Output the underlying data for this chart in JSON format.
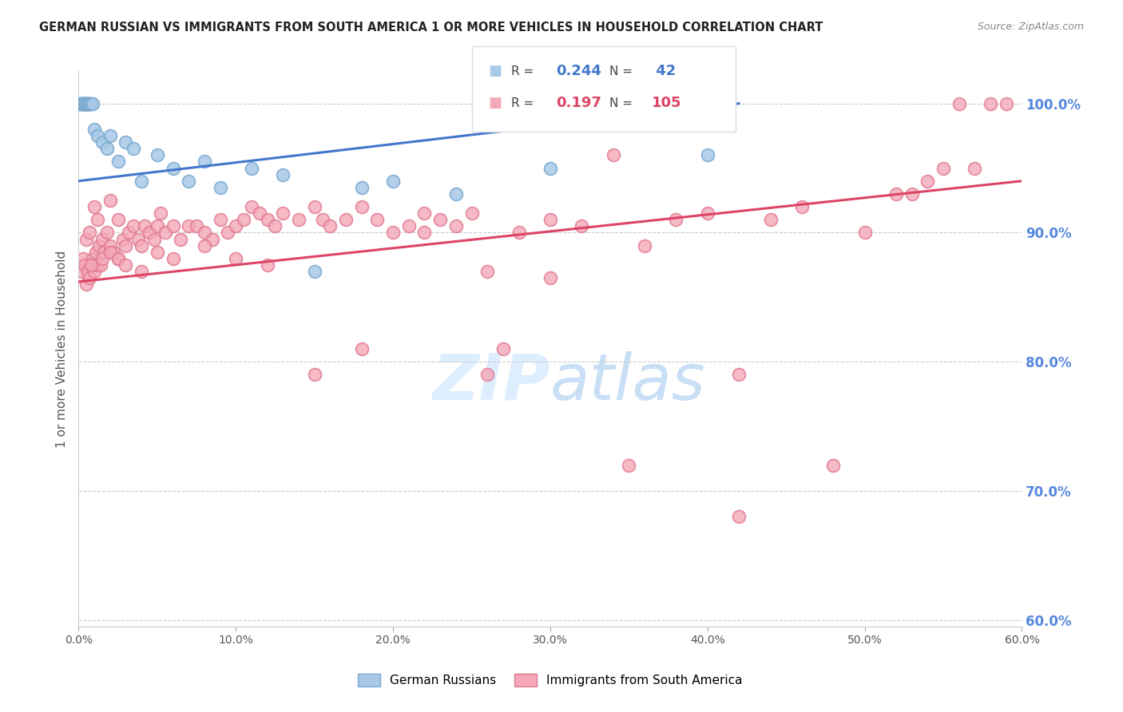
{
  "title": "GERMAN RUSSIAN VS IMMIGRANTS FROM SOUTH AMERICA 1 OR MORE VEHICLES IN HOUSEHOLD CORRELATION CHART",
  "source": "Source: ZipAtlas.com",
  "ylabel": "1 or more Vehicles in Household",
  "xmin": 0.0,
  "xmax": 0.6,
  "ymin": 0.595,
  "ymax": 1.025,
  "yticks": [
    0.6,
    0.7,
    0.8,
    0.9,
    1.0
  ],
  "xticks": [
    0.0,
    0.1,
    0.2,
    0.3,
    0.4,
    0.5,
    0.6
  ],
  "xtick_labels": [
    "0.0%",
    "10.0%",
    "20.0%",
    "30.0%",
    "40.0%",
    "50.0%",
    "60.0%"
  ],
  "ytick_labels": [
    "60.0%",
    "70.0%",
    "80.0%",
    "90.0%",
    "100.0%"
  ],
  "blue_R": 0.244,
  "blue_N": 42,
  "pink_R": 0.197,
  "pink_N": 105,
  "blue_label": "German Russians",
  "pink_label": "Immigrants from South America",
  "blue_color": "#a8c8e8",
  "pink_color": "#f4a8b8",
  "blue_edge": "#7aaad0",
  "pink_edge": "#e07890",
  "blue_line_color": "#4477cc",
  "pink_line_color": "#dd4466",
  "title_color": "#222222",
  "source_color": "#888888",
  "axis_label_color": "#555555",
  "right_axis_color": "#5588dd",
  "grid_color": "#cccccc",
  "watermark_color": "#ddeeff",
  "blue_trend_x0": 0.0,
  "blue_trend_y0": 0.94,
  "blue_trend_x1": 0.42,
  "blue_trend_y1": 1.0,
  "pink_trend_x0": 0.0,
  "pink_trend_y0": 0.862,
  "pink_trend_x1": 0.6,
  "pink_trend_y1": 0.94,
  "blue_points_x": [
    0.001,
    0.002,
    0.002,
    0.003,
    0.003,
    0.003,
    0.004,
    0.004,
    0.004,
    0.004,
    0.005,
    0.005,
    0.005,
    0.006,
    0.006,
    0.006,
    0.007,
    0.007,
    0.008,
    0.009,
    0.01,
    0.012,
    0.015,
    0.018,
    0.02,
    0.025,
    0.03,
    0.035,
    0.04,
    0.05,
    0.06,
    0.07,
    0.08,
    0.09,
    0.11,
    0.13,
    0.15,
    0.18,
    0.2,
    0.24,
    0.3,
    0.4
  ],
  "blue_points_y": [
    1.0,
    1.0,
    1.0,
    1.0,
    1.0,
    1.0,
    1.0,
    1.0,
    1.0,
    1.0,
    1.0,
    1.0,
    1.0,
    1.0,
    1.0,
    1.0,
    1.0,
    1.0,
    1.0,
    1.0,
    0.98,
    0.975,
    0.97,
    0.965,
    0.975,
    0.955,
    0.97,
    0.965,
    0.94,
    0.96,
    0.95,
    0.94,
    0.955,
    0.935,
    0.95,
    0.945,
    0.87,
    0.935,
    0.94,
    0.93,
    0.95,
    0.96
  ],
  "pink_points_x": [
    0.002,
    0.003,
    0.004,
    0.005,
    0.005,
    0.006,
    0.007,
    0.007,
    0.008,
    0.009,
    0.01,
    0.01,
    0.011,
    0.012,
    0.012,
    0.013,
    0.014,
    0.015,
    0.016,
    0.018,
    0.02,
    0.02,
    0.022,
    0.025,
    0.025,
    0.028,
    0.03,
    0.032,
    0.035,
    0.038,
    0.04,
    0.042,
    0.045,
    0.048,
    0.05,
    0.052,
    0.055,
    0.06,
    0.065,
    0.07,
    0.075,
    0.08,
    0.085,
    0.09,
    0.095,
    0.1,
    0.105,
    0.11,
    0.115,
    0.12,
    0.125,
    0.13,
    0.14,
    0.15,
    0.155,
    0.16,
    0.17,
    0.18,
    0.19,
    0.2,
    0.21,
    0.22,
    0.23,
    0.24,
    0.25,
    0.26,
    0.27,
    0.28,
    0.3,
    0.32,
    0.34,
    0.36,
    0.38,
    0.4,
    0.42,
    0.44,
    0.46,
    0.5,
    0.52,
    0.54,
    0.56,
    0.008,
    0.015,
    0.02,
    0.025,
    0.03,
    0.04,
    0.05,
    0.06,
    0.08,
    0.1,
    0.12,
    0.15,
    0.18,
    0.22,
    0.26,
    0.3,
    0.35,
    0.42,
    0.48,
    0.53,
    0.55,
    0.57,
    0.58,
    0.59
  ],
  "pink_points_y": [
    0.87,
    0.88,
    0.875,
    0.86,
    0.895,
    0.87,
    0.865,
    0.9,
    0.875,
    0.88,
    0.87,
    0.92,
    0.885,
    0.875,
    0.91,
    0.89,
    0.875,
    0.895,
    0.885,
    0.9,
    0.89,
    0.925,
    0.885,
    0.88,
    0.91,
    0.895,
    0.89,
    0.9,
    0.905,
    0.895,
    0.89,
    0.905,
    0.9,
    0.895,
    0.905,
    0.915,
    0.9,
    0.905,
    0.895,
    0.905,
    0.905,
    0.9,
    0.895,
    0.91,
    0.9,
    0.905,
    0.91,
    0.92,
    0.915,
    0.91,
    0.905,
    0.915,
    0.91,
    0.92,
    0.91,
    0.905,
    0.91,
    0.92,
    0.91,
    0.9,
    0.905,
    0.915,
    0.91,
    0.905,
    0.915,
    0.79,
    0.81,
    0.9,
    0.91,
    0.905,
    0.96,
    0.89,
    0.91,
    0.915,
    0.79,
    0.91,
    0.92,
    0.9,
    0.93,
    0.94,
    1.0,
    0.875,
    0.88,
    0.885,
    0.88,
    0.875,
    0.87,
    0.885,
    0.88,
    0.89,
    0.88,
    0.875,
    0.79,
    0.81,
    0.9,
    0.87,
    0.865,
    0.72,
    0.68,
    0.72,
    0.93,
    0.95,
    0.95,
    1.0,
    1.0
  ]
}
